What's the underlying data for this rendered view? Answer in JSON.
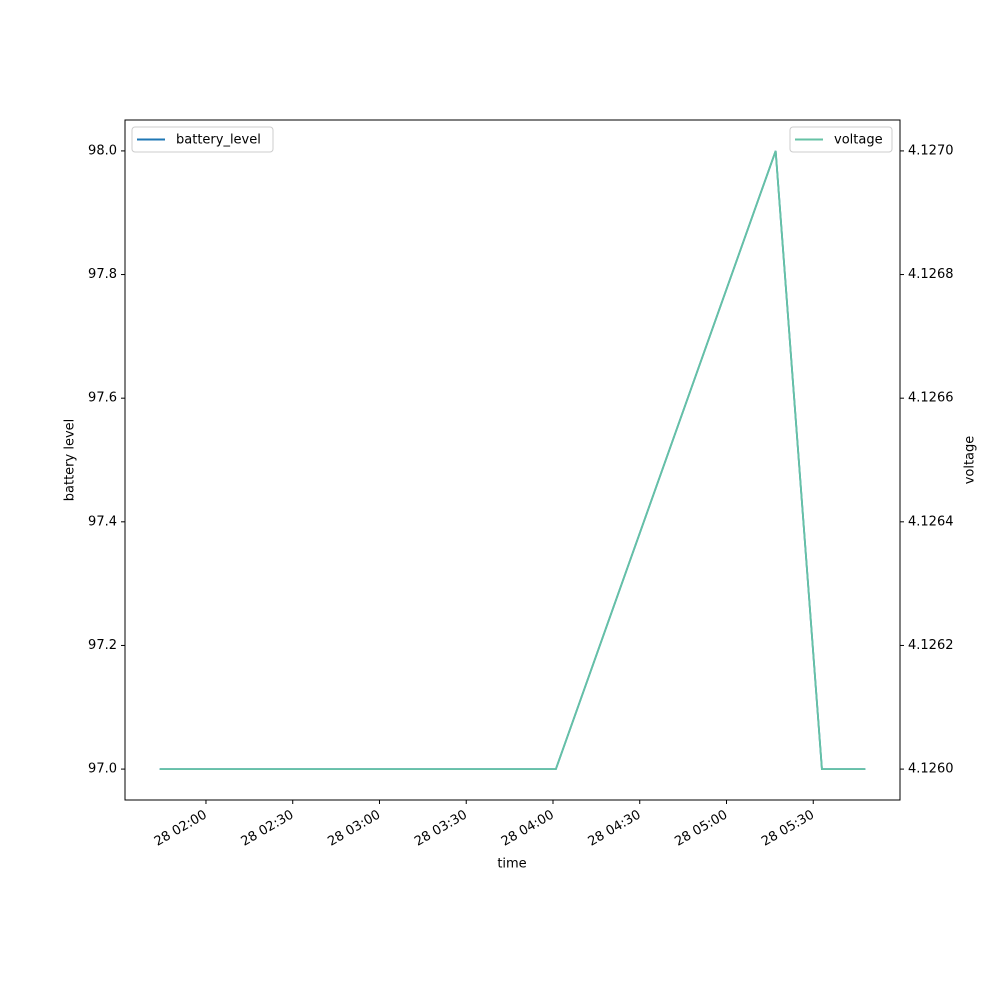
{
  "chart_data": {
    "type": "line",
    "x_label": "time",
    "y_label": "battery level",
    "y2_label": "voltage",
    "x": [
      "28 01:44",
      "28 04:01",
      "28 05:17",
      "28 05:33",
      "28 05:48"
    ],
    "series": [
      {
        "name": "battery_level",
        "color": "#1f77b4",
        "values": [
          97.0,
          97.0,
          98.0,
          97.0,
          97.0
        ]
      },
      {
        "name": "voltage",
        "color": "#66c2a5",
        "axis": "y2",
        "values": [
          4.126,
          4.126,
          4.127,
          4.126,
          4.126
        ]
      }
    ],
    "xlim": [
      "28 01:32",
      "28 06:00"
    ],
    "xticks": [
      "28 02:00",
      "28 02:30",
      "28 03:00",
      "28 03:30",
      "28 04:00",
      "28 04:30",
      "28 05:00",
      "28 05:30"
    ],
    "ylim": [
      96.95,
      98.05
    ],
    "yticks": [
      {
        "value": 97.0,
        "label": "97.0"
      },
      {
        "value": 97.2,
        "label": "97.2"
      },
      {
        "value": 97.4,
        "label": "97.4"
      },
      {
        "value": 97.6,
        "label": "97.6"
      },
      {
        "value": 97.8,
        "label": "97.8"
      },
      {
        "value": 98.0,
        "label": "98.0"
      }
    ],
    "y2lim": [
      4.12595,
      4.12705
    ],
    "y2ticks": [
      {
        "value": 4.126,
        "label": "4.1260"
      },
      {
        "value": 4.1262,
        "label": "4.1262"
      },
      {
        "value": 4.1264,
        "label": "4.1264"
      },
      {
        "value": 4.1266,
        "label": "4.1266"
      },
      {
        "value": 4.1268,
        "label": "4.1268"
      },
      {
        "value": 4.127,
        "label": "4.1270"
      }
    ],
    "legend": "upper left",
    "legend2": "upper right",
    "grid": false
  }
}
